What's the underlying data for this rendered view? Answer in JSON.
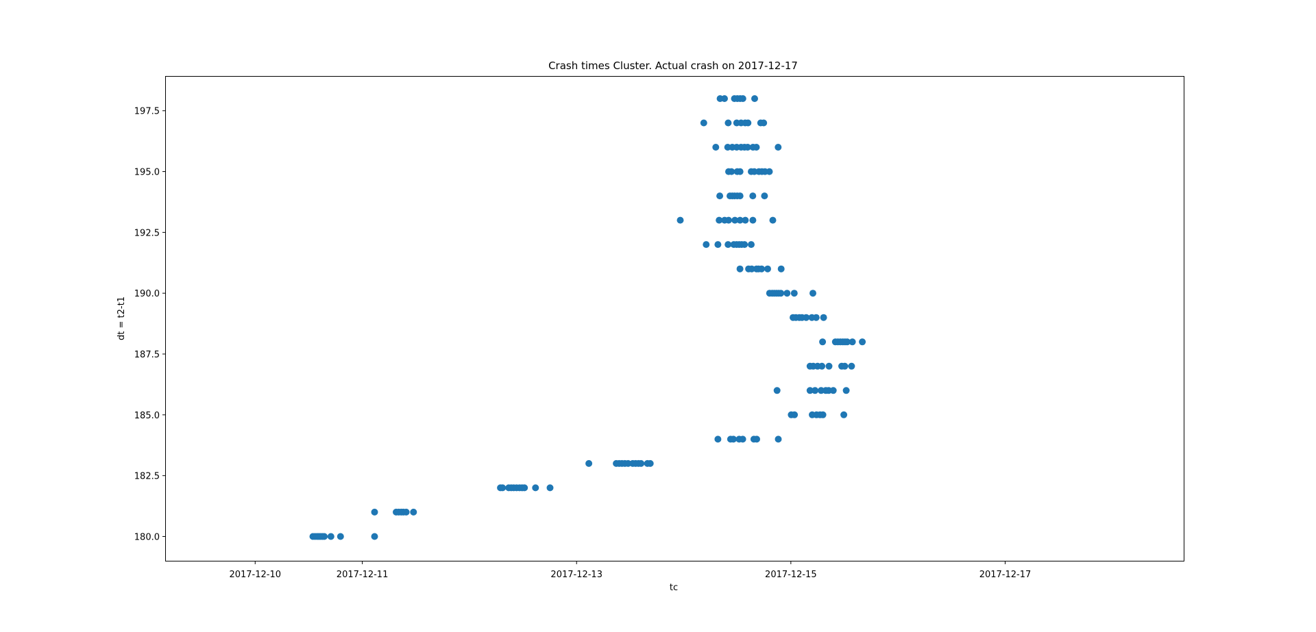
{
  "chart_data": {
    "type": "scatter",
    "title": "Crash times Cluster. Actual crash on 2017-12-17",
    "xlabel": "tc",
    "ylabel": "dt = t2-t1",
    "xlim": [
      "2017-12-09 04:00",
      "2017-12-18 16:00"
    ],
    "ylim": [
      179.0,
      198.9
    ],
    "x_ticks": [
      "2017-12-10",
      "2017-12-11",
      "2017-12-13",
      "2017-12-15",
      "2017-12-17"
    ],
    "y_ticks": [
      "180.0",
      "182.5",
      "185.0",
      "187.5",
      "190.0",
      "192.5",
      "195.0",
      "197.5"
    ],
    "grid": false,
    "marker_color": "#1f77b4",
    "series": [
      {
        "points": [
          [
            "2017-12-10 12:56",
            180
          ],
          [
            "2017-12-10 13:25",
            180
          ],
          [
            "2017-12-10 13:53",
            180
          ],
          [
            "2017-12-10 14:17",
            180
          ],
          [
            "2017-12-10 14:41",
            180
          ],
          [
            "2017-12-10 15:05",
            180
          ],
          [
            "2017-12-10 15:29",
            180
          ],
          [
            "2017-12-10 16:58",
            180
          ],
          [
            "2017-12-10 19:07",
            180
          ],
          [
            "2017-12-11 02:45",
            180
          ],
          [
            "2017-12-11 02:45",
            181
          ],
          [
            "2017-12-11 07:35",
            181
          ],
          [
            "2017-12-11 08:09",
            181
          ],
          [
            "2017-12-11 08:43",
            181
          ],
          [
            "2017-12-11 09:12",
            181
          ],
          [
            "2017-12-11 09:50",
            181
          ],
          [
            "2017-12-11 11:28",
            181
          ],
          [
            "2017-12-12 06:56",
            182
          ],
          [
            "2017-12-12 07:25",
            182
          ],
          [
            "2017-12-12 08:48",
            182
          ],
          [
            "2017-12-12 09:22",
            182
          ],
          [
            "2017-12-12 09:55",
            182
          ],
          [
            "2017-12-12 10:34",
            182
          ],
          [
            "2017-12-12 11:13",
            182
          ],
          [
            "2017-12-12 11:47",
            182
          ],
          [
            "2017-12-12 12:20",
            182
          ],
          [
            "2017-12-12 14:48",
            182
          ],
          [
            "2017-12-12 18:03",
            182
          ],
          [
            "2017-12-13 02:45",
            183
          ],
          [
            "2017-12-13 08:53",
            183
          ],
          [
            "2017-12-13 09:32",
            183
          ],
          [
            "2017-12-13 10:10",
            183
          ],
          [
            "2017-12-13 10:49",
            183
          ],
          [
            "2017-12-13 11:33",
            183
          ],
          [
            "2017-12-13 12:34",
            183
          ],
          [
            "2017-12-13 13:13",
            183
          ],
          [
            "2017-12-13 13:52",
            183
          ],
          [
            "2017-12-13 14:26",
            183
          ],
          [
            "2017-12-13 15:52",
            183
          ],
          [
            "2017-12-13 16:30",
            183
          ],
          [
            "2017-12-14 07:39",
            184
          ],
          [
            "2017-12-14 10:30",
            184
          ],
          [
            "2017-12-14 11:08",
            184
          ],
          [
            "2017-12-14 12:25",
            184
          ],
          [
            "2017-12-14 13:13",
            184
          ],
          [
            "2017-12-14 15:43",
            184
          ],
          [
            "2017-12-14 16:21",
            184
          ],
          [
            "2017-12-14 21:11",
            184
          ],
          [
            "2017-12-15 00:05",
            185
          ],
          [
            "2017-12-15 00:48",
            185
          ],
          [
            "2017-12-15 04:47",
            185
          ],
          [
            "2017-12-15 05:45",
            185
          ],
          [
            "2017-12-15 06:32",
            185
          ],
          [
            "2017-12-15 07:11",
            185
          ],
          [
            "2017-12-15 11:52",
            185
          ],
          [
            "2017-12-14 20:54",
            186
          ],
          [
            "2017-12-15 04:18",
            186
          ],
          [
            "2017-12-15 05:25",
            186
          ],
          [
            "2017-12-15 06:47",
            186
          ],
          [
            "2017-12-15 07:49",
            186
          ],
          [
            "2017-12-15 08:28",
            186
          ],
          [
            "2017-12-15 09:30",
            186
          ],
          [
            "2017-12-15 12:24",
            186
          ],
          [
            "2017-12-15 04:18",
            187
          ],
          [
            "2017-12-15 05:01",
            187
          ],
          [
            "2017-12-15 05:59",
            187
          ],
          [
            "2017-12-15 06:57",
            187
          ],
          [
            "2017-12-15 08:33",
            187
          ],
          [
            "2017-12-15 11:23",
            187
          ],
          [
            "2017-12-15 12:05",
            187
          ],
          [
            "2017-12-15 13:36",
            187
          ],
          [
            "2017-12-15 07:06",
            188
          ],
          [
            "2017-12-15 09:58",
            188
          ],
          [
            "2017-12-15 10:32",
            188
          ],
          [
            "2017-12-15 11:06",
            188
          ],
          [
            "2017-12-15 11:39",
            188
          ],
          [
            "2017-12-15 12:08",
            188
          ],
          [
            "2017-12-15 12:37",
            188
          ],
          [
            "2017-12-15 13:47",
            188
          ],
          [
            "2017-12-15 16:00",
            188
          ],
          [
            "2017-12-15 00:29",
            189
          ],
          [
            "2017-12-15 01:08",
            189
          ],
          [
            "2017-12-15 01:54",
            189
          ],
          [
            "2017-12-15 02:30",
            189
          ],
          [
            "2017-12-15 03:26",
            189
          ],
          [
            "2017-12-15 04:42",
            189
          ],
          [
            "2017-12-15 05:40",
            189
          ],
          [
            "2017-12-15 07:20",
            189
          ],
          [
            "2017-12-14 19:14",
            190
          ],
          [
            "2017-12-14 19:50",
            190
          ],
          [
            "2017-12-14 20:18",
            190
          ],
          [
            "2017-12-14 20:47",
            190
          ],
          [
            "2017-12-14 21:16",
            190
          ],
          [
            "2017-12-14 21:45",
            190
          ],
          [
            "2017-12-14 23:09",
            190
          ],
          [
            "2017-12-15 00:46",
            190
          ],
          [
            "2017-12-15 04:56",
            190
          ],
          [
            "2017-12-14 12:36",
            191
          ],
          [
            "2017-12-14 14:31",
            191
          ],
          [
            "2017-12-14 15:14",
            191
          ],
          [
            "2017-12-14 16:19",
            191
          ],
          [
            "2017-12-14 16:45",
            191
          ],
          [
            "2017-12-14 17:26",
            191
          ],
          [
            "2017-12-14 18:48",
            191
          ],
          [
            "2017-12-14 21:50",
            191
          ],
          [
            "2017-12-14 05:02",
            192
          ],
          [
            "2017-12-14 07:39",
            192
          ],
          [
            "2017-12-14 09:56",
            192
          ],
          [
            "2017-12-14 11:13",
            192
          ],
          [
            "2017-12-14 11:51",
            192
          ],
          [
            "2017-12-14 12:25",
            192
          ],
          [
            "2017-12-14 12:58",
            192
          ],
          [
            "2017-12-14 13:37",
            192
          ],
          [
            "2017-12-14 15:07",
            192
          ],
          [
            "2017-12-13 23:14",
            193
          ],
          [
            "2017-12-14 07:56",
            193
          ],
          [
            "2017-12-14 09:10",
            193
          ],
          [
            "2017-12-14 10:03",
            193
          ],
          [
            "2017-12-14 11:28",
            193
          ],
          [
            "2017-12-14 12:37",
            193
          ],
          [
            "2017-12-14 13:48",
            193
          ],
          [
            "2017-12-14 15:29",
            193
          ],
          [
            "2017-12-14 19:57",
            193
          ],
          [
            "2017-12-14 08:04",
            194
          ],
          [
            "2017-12-14 10:22",
            194
          ],
          [
            "2017-12-14 10:53",
            194
          ],
          [
            "2017-12-14 11:23",
            194
          ],
          [
            "2017-12-14 11:59",
            194
          ],
          [
            "2017-12-14 12:37",
            194
          ],
          [
            "2017-12-14 15:28",
            194
          ],
          [
            "2017-12-14 18:06",
            194
          ],
          [
            "2017-12-14 10:03",
            195
          ],
          [
            "2017-12-14 10:42",
            195
          ],
          [
            "2017-12-14 11:59",
            195
          ],
          [
            "2017-12-14 12:37",
            195
          ],
          [
            "2017-12-14 15:07",
            195
          ],
          [
            "2017-12-14 15:49",
            195
          ],
          [
            "2017-12-14 16:50",
            195
          ],
          [
            "2017-12-14 17:31",
            195
          ],
          [
            "2017-12-14 18:12",
            195
          ],
          [
            "2017-12-14 19:11",
            195
          ],
          [
            "2017-12-14 07:11",
            196
          ],
          [
            "2017-12-14 09:51",
            196
          ],
          [
            "2017-12-14 10:53",
            196
          ],
          [
            "2017-12-14 11:52",
            196
          ],
          [
            "2017-12-14 12:51",
            196
          ],
          [
            "2017-12-14 13:37",
            196
          ],
          [
            "2017-12-14 14:19",
            196
          ],
          [
            "2017-12-14 15:31",
            196
          ],
          [
            "2017-12-14 16:16",
            196
          ],
          [
            "2017-12-14 21:09",
            196
          ],
          [
            "2017-12-14 04:30",
            197
          ],
          [
            "2017-12-14 09:58",
            197
          ],
          [
            "2017-12-14 11:52",
            197
          ],
          [
            "2017-12-14 12:51",
            197
          ],
          [
            "2017-12-14 13:46",
            197
          ],
          [
            "2017-12-14 14:24",
            197
          ],
          [
            "2017-12-14 17:14",
            197
          ],
          [
            "2017-12-14 17:55",
            197
          ],
          [
            "2017-12-14 08:09",
            198
          ],
          [
            "2017-12-14 09:08",
            198
          ],
          [
            "2017-12-14 11:21",
            198
          ],
          [
            "2017-12-14 12:01",
            198
          ],
          [
            "2017-12-14 12:39",
            198
          ],
          [
            "2017-12-14 13:15",
            198
          ],
          [
            "2017-12-14 15:53",
            198
          ]
        ]
      }
    ]
  }
}
